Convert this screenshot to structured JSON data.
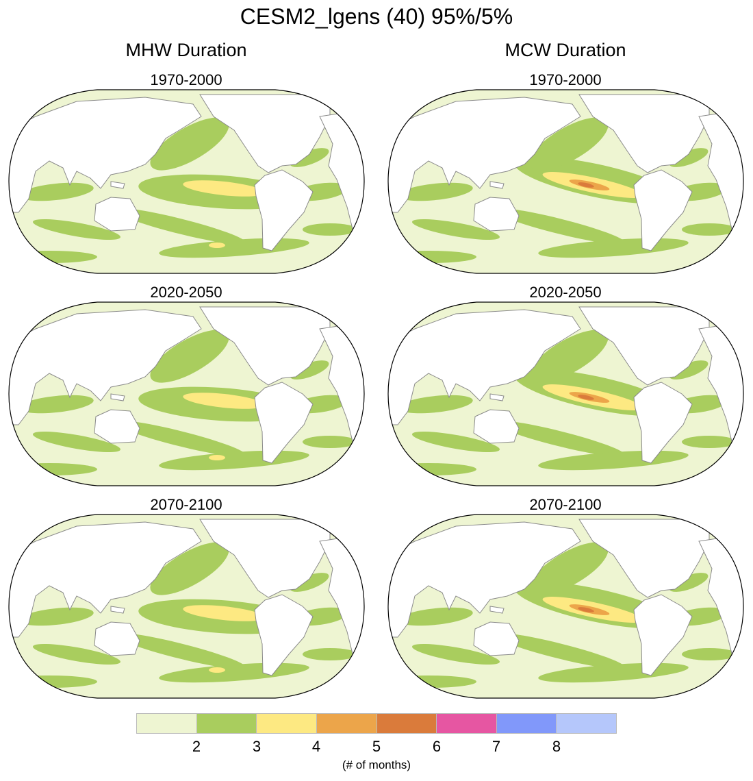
{
  "title": "CESM2_lgens (40) 95%/5%",
  "columns": [
    "MHW Duration",
    "MCW Duration"
  ],
  "periods": [
    "1970-2000",
    "2020-2050",
    "2070-2100"
  ],
  "chart_data": {
    "type": "heatmap",
    "title": "CESM2_lgens (40) 95%/5%",
    "panels": [
      {
        "column": "MHW Duration",
        "period": "1970-2000"
      },
      {
        "column": "MCW Duration",
        "period": "1970-2000"
      },
      {
        "column": "MHW Duration",
        "period": "2020-2050"
      },
      {
        "column": "MCW Duration",
        "period": "2020-2050"
      },
      {
        "column": "MHW Duration",
        "period": "2070-2100"
      },
      {
        "column": "MCW Duration",
        "period": "2070-2100"
      }
    ],
    "colorbar": {
      "ticks": [
        "2",
        "3",
        "4",
        "5",
        "6",
        "7",
        "8"
      ],
      "label": "(# of months)",
      "colors": [
        "#eef5d2",
        "#a9cd5e",
        "#fde982",
        "#eca54a",
        "#da7b3b",
        "#e656a2",
        "#8198fa",
        "#b5c7fb"
      ]
    },
    "land_color": "#ffffff",
    "coast_color": "#8a8a8a"
  }
}
